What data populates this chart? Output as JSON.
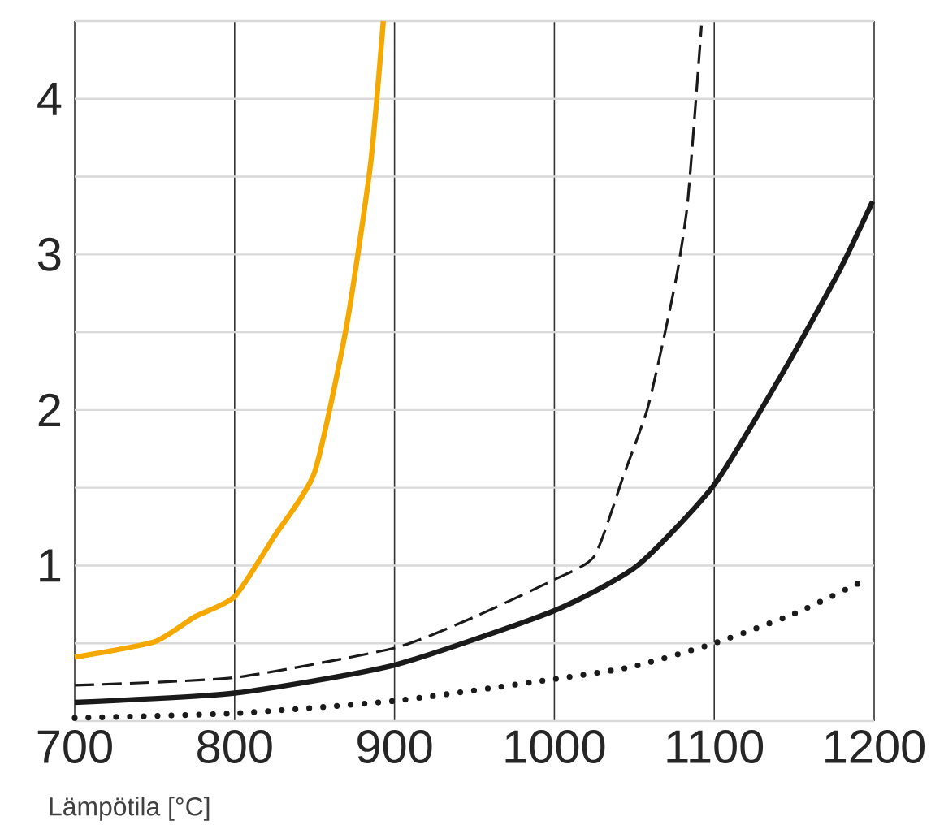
{
  "chart_data": {
    "type": "line",
    "xlabel": "Lämpötila [°C]",
    "xlim": [
      700,
      1200
    ],
    "xticks": [
      700,
      800,
      900,
      1000,
      1100,
      1200
    ],
    "ylim": [
      0,
      4.5
    ],
    "yticks": [
      {
        "value": 0,
        "label": null
      },
      {
        "value": 0.5,
        "label": null
      },
      1,
      {
        "value": 1.5,
        "label": null
      },
      2,
      {
        "value": 2.5,
        "label": null
      },
      3,
      {
        "value": 3.5,
        "label": null
      },
      4,
      {
        "value": 4.5,
        "label": null
      }
    ],
    "grid": true,
    "series": [
      {
        "color": "#f5a800",
        "line_style": "solid",
        "x": [
          700,
          750,
          775,
          800,
          825,
          850,
          870,
          885,
          893
        ],
        "values": [
          0.41,
          0.51,
          0.67,
          0.8,
          1.19,
          1.6,
          2.54,
          3.58,
          4.5
        ]
      },
      {
        "color": "#1a1a1a",
        "line_style": "dashed",
        "x": [
          700,
          800,
          900,
          950,
          1000,
          1025,
          1043,
          1058,
          1068,
          1077,
          1083,
          1087,
          1092
        ],
        "values": [
          0.23,
          0.28,
          0.47,
          0.67,
          0.91,
          1.06,
          1.57,
          2.0,
          2.44,
          2.89,
          3.3,
          3.79,
          4.47
        ]
      },
      {
        "color": "#1a1a1a",
        "line_style": "solid",
        "x": [
          700,
          800,
          900,
          1000,
          1052,
          1100,
          1144,
          1178,
          1199
        ],
        "values": [
          0.12,
          0.18,
          0.36,
          0.71,
          1.0,
          1.52,
          2.26,
          2.89,
          3.34
        ]
      },
      {
        "color": "#1a1a1a",
        "line_style": "dotted",
        "x": [
          700,
          800,
          900,
          1000,
          1049,
          1100,
          1150,
          1191
        ],
        "values": [
          0.02,
          0.05,
          0.13,
          0.27,
          0.35,
          0.5,
          0.69,
          0.89
        ]
      }
    ]
  }
}
